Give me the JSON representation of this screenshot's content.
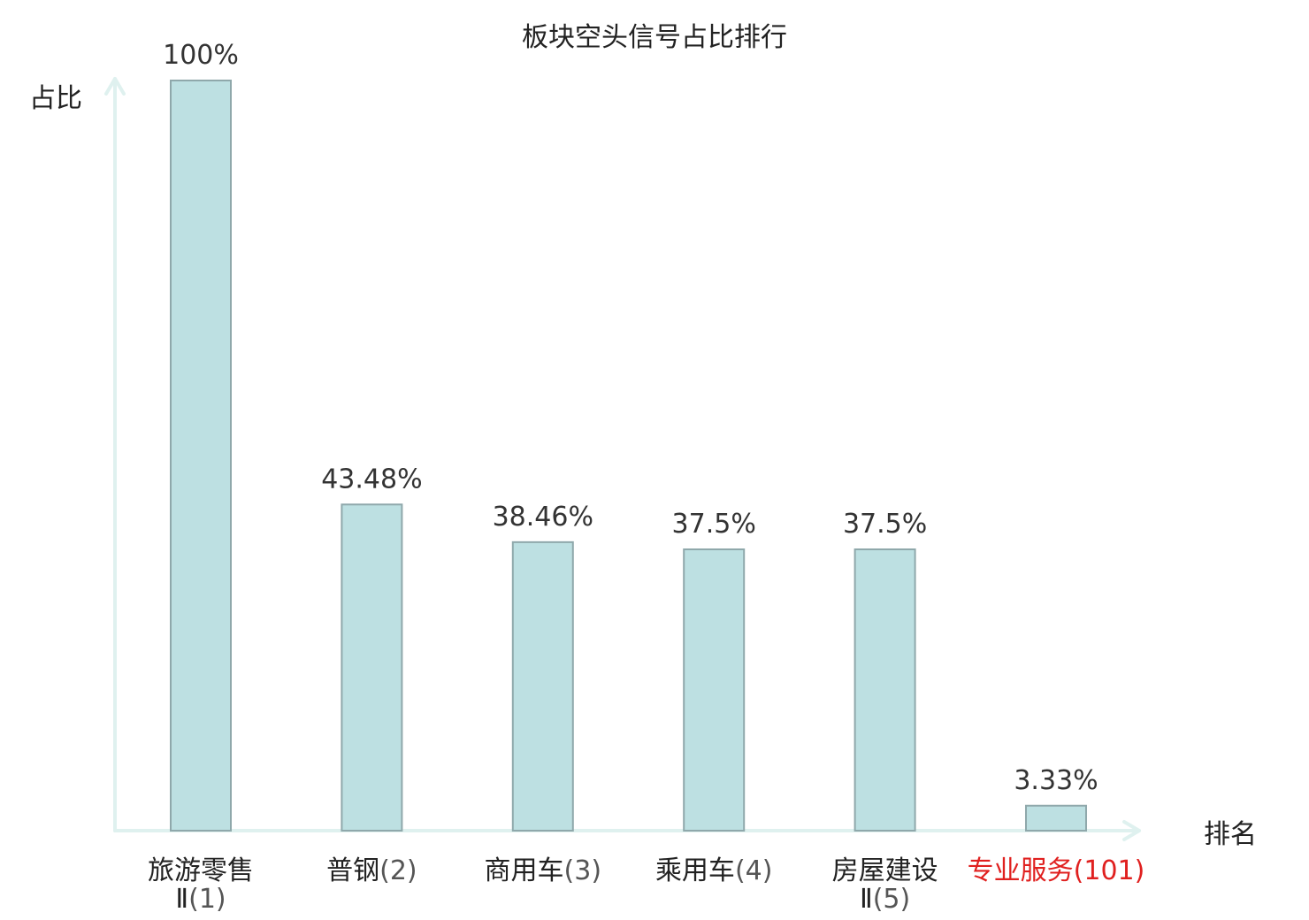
{
  "chart_data": {
    "type": "bar",
    "title": "板块空头信号占比排行",
    "ylabel": "占比",
    "xlabel": "排名",
    "categories": [
      {
        "name_lines": [
          "旅游零售",
          "Ⅱ"
        ],
        "rank": "(1)"
      },
      {
        "name_lines": [
          "普钢"
        ],
        "rank": "(2)"
      },
      {
        "name_lines": [
          "商用车"
        ],
        "rank": "(3)"
      },
      {
        "name_lines": [
          "乘用车"
        ],
        "rank": "(4)"
      },
      {
        "name_lines": [
          "房屋建设",
          "Ⅱ"
        ],
        "rank": "(5)"
      },
      {
        "name_lines": [
          "专业服务"
        ],
        "rank": "(101)"
      }
    ],
    "values": [
      100,
      43.48,
      38.46,
      37.5,
      37.5,
      3.33
    ],
    "value_labels": [
      "100%",
      "43.48%",
      "38.46%",
      "37.5%",
      "37.5%",
      "3.33%"
    ],
    "ylim": [
      0,
      100
    ],
    "grid": false,
    "legend": "none",
    "highlight_index": 5
  },
  "colors": {
    "bar_fill": "#bde0e2",
    "bar_stroke": "#8fa8ab",
    "axis": "#dff1ef",
    "highlight_text": "#e0201f",
    "text": "#222222"
  }
}
